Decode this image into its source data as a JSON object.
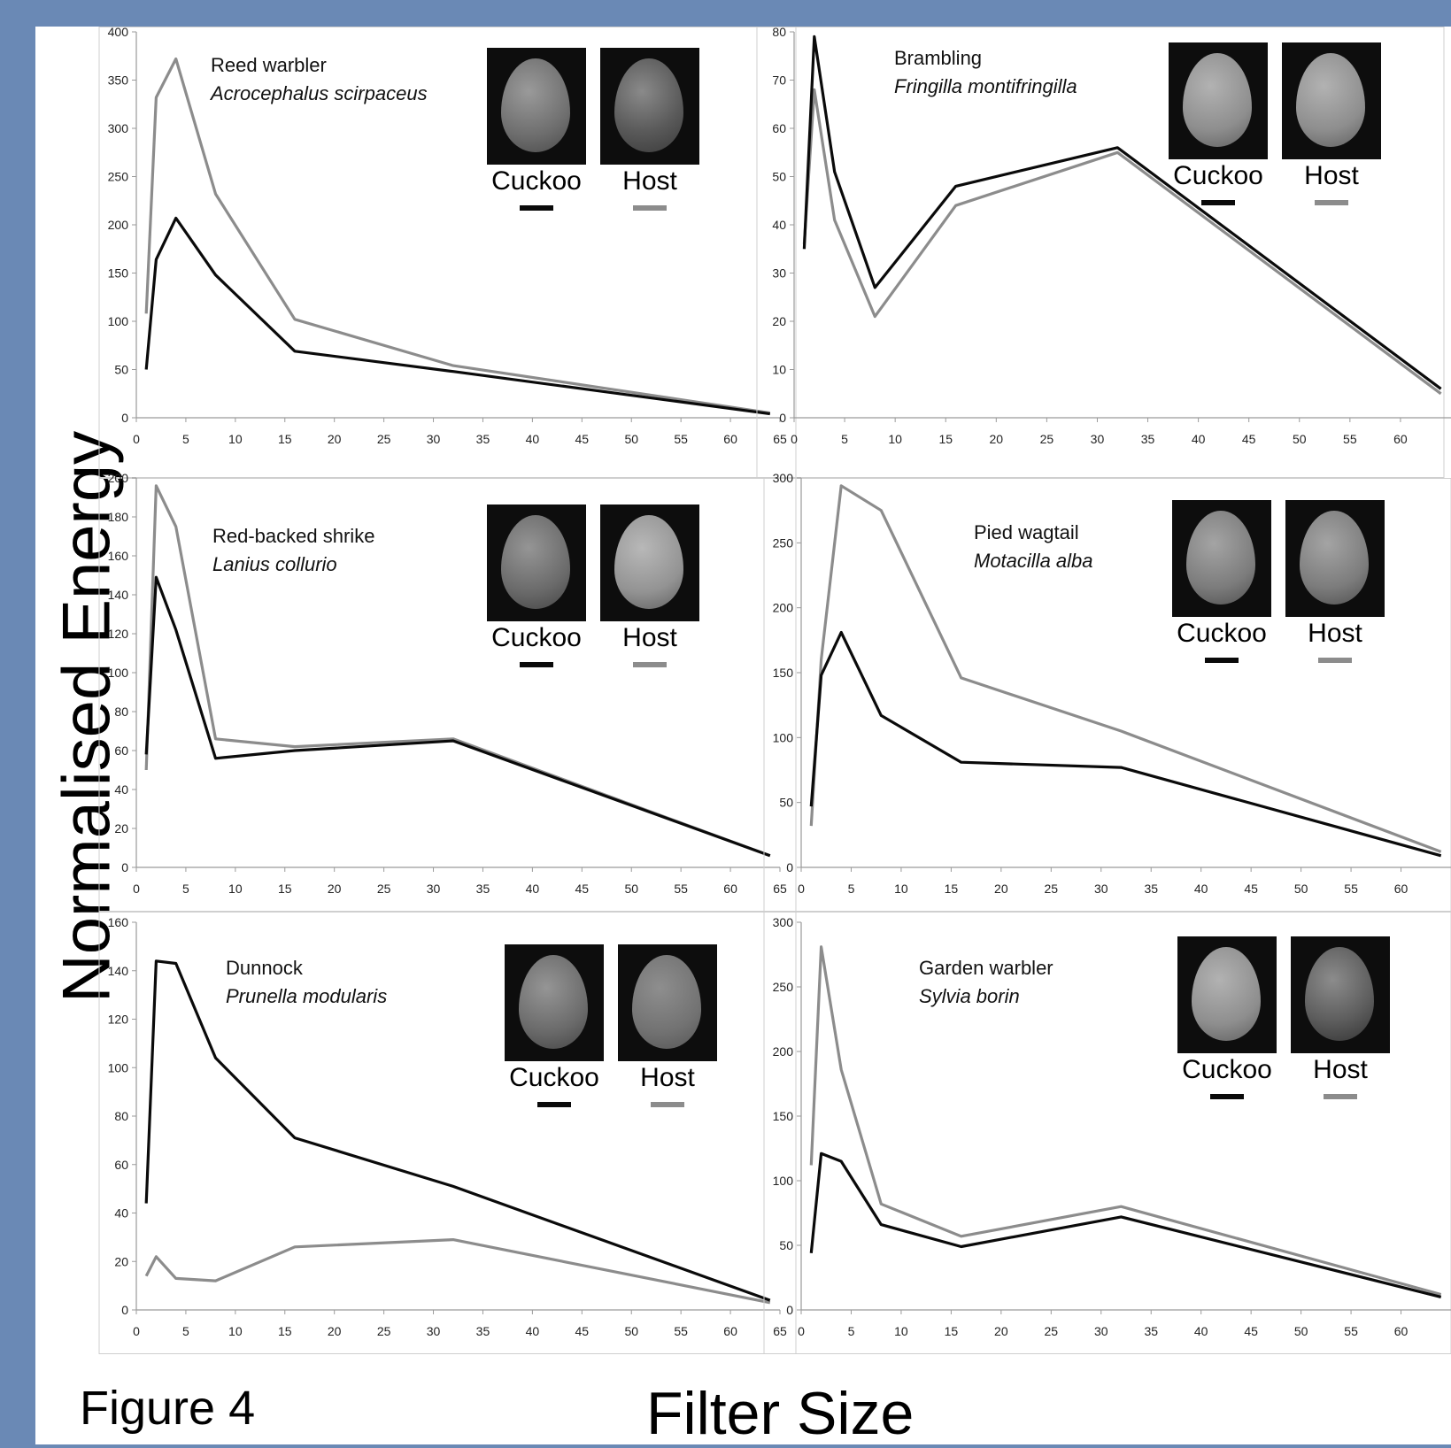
{
  "figure_label": "Figure 4",
  "ylabel": "Normalised Energy",
  "xlabel": "Filter Size",
  "colors": {
    "cuckoo": "#0a0a0a",
    "host": "#8c8c8c",
    "background_frame": "#6a89b5"
  },
  "legend": {
    "cuckoo_label": "Cuckoo",
    "host_label": "Host"
  },
  "chart_data": [
    {
      "type": "line",
      "common_name": "Reed warbler",
      "latin_name": "Acrocephalus scirpaceus",
      "x": [
        1,
        2,
        4,
        8,
        16,
        32,
        64
      ],
      "xticks": [
        0,
        5,
        10,
        15,
        20,
        25,
        30,
        35,
        40,
        45,
        50,
        55,
        60,
        65
      ],
      "xlim": [
        0,
        65
      ],
      "ylim": [
        0,
        400
      ],
      "yticks": [
        0,
        50,
        100,
        150,
        200,
        250,
        300,
        350,
        400
      ],
      "series": [
        {
          "name": "Cuckoo",
          "values": [
            50,
            164,
            207,
            148,
            69,
            48,
            4
          ]
        },
        {
          "name": "Host",
          "values": [
            108,
            332,
            372,
            232,
            102,
            54,
            5
          ]
        }
      ],
      "eggs": {
        "cuckoo": "speckled-grey",
        "host": "heavily-blotched"
      }
    },
    {
      "type": "line",
      "common_name": "Brambling",
      "latin_name": "Fringilla montifringilla",
      "x": [
        1,
        2,
        4,
        8,
        16,
        32,
        64
      ],
      "xticks": [
        0,
        5,
        10,
        15,
        20,
        25,
        30,
        35,
        40,
        45,
        50,
        55,
        60
      ],
      "xlim": [
        0,
        65
      ],
      "ylim": [
        0,
        80
      ],
      "yticks": [
        0,
        10,
        20,
        30,
        40,
        50,
        60,
        70,
        80
      ],
      "series": [
        {
          "name": "Cuckoo",
          "values": [
            35,
            79,
            51,
            27,
            48,
            56,
            6
          ]
        },
        {
          "name": "Host",
          "values": [
            36,
            68,
            41,
            21,
            44,
            55,
            5
          ]
        }
      ],
      "eggs": {
        "cuckoo": "sparse-spots",
        "host": "sparse-spots"
      }
    },
    {
      "type": "line",
      "common_name": "Red-backed shrike",
      "latin_name": "Lanius collurio",
      "x": [
        1,
        2,
        4,
        8,
        16,
        32,
        64
      ],
      "xticks": [
        0,
        5,
        10,
        15,
        20,
        25,
        30,
        35,
        40,
        45,
        50,
        55,
        60,
        65
      ],
      "xlim": [
        0,
        65
      ],
      "ylim": [
        0,
        200
      ],
      "yticks": [
        0,
        20,
        40,
        60,
        80,
        100,
        120,
        140,
        160,
        180,
        200
      ],
      "series": [
        {
          "name": "Cuckoo",
          "values": [
            58,
            149,
            122,
            56,
            60,
            65,
            6
          ]
        },
        {
          "name": "Host",
          "values": [
            50,
            196,
            175,
            66,
            62,
            66,
            6
          ]
        }
      ],
      "eggs": {
        "cuckoo": "mottled",
        "host": "banded"
      }
    },
    {
      "type": "line",
      "common_name": "Pied wagtail",
      "latin_name": "Motacilla alba",
      "x": [
        1,
        2,
        4,
        8,
        16,
        32,
        64
      ],
      "xticks": [
        0,
        5,
        10,
        15,
        20,
        25,
        30,
        35,
        40,
        45,
        50,
        55,
        60
      ],
      "xlim": [
        0,
        65
      ],
      "ylim": [
        0,
        300
      ],
      "yticks": [
        0,
        50,
        100,
        150,
        200,
        250,
        300
      ],
      "series": [
        {
          "name": "Cuckoo",
          "values": [
            47,
            148,
            181,
            117,
            81,
            77,
            9
          ]
        },
        {
          "name": "Host",
          "values": [
            32,
            160,
            294,
            275,
            146,
            105,
            12
          ]
        }
      ],
      "eggs": {
        "cuckoo": "fine-speckled",
        "host": "fine-speckled"
      }
    },
    {
      "type": "line",
      "common_name": "Dunnock",
      "latin_name": "Prunella modularis",
      "x": [
        1,
        2,
        4,
        8,
        16,
        32,
        64
      ],
      "xticks": [
        0,
        5,
        10,
        15,
        20,
        25,
        30,
        35,
        40,
        45,
        50,
        55,
        60,
        65
      ],
      "xlim": [
        0,
        65
      ],
      "ylim": [
        0,
        160
      ],
      "yticks": [
        0,
        20,
        40,
        60,
        80,
        100,
        120,
        140,
        160
      ],
      "series": [
        {
          "name": "Cuckoo",
          "values": [
            44,
            144,
            143,
            104,
            71,
            51,
            4
          ]
        },
        {
          "name": "Host",
          "values": [
            14,
            22,
            13,
            12,
            26,
            29,
            3
          ]
        }
      ],
      "eggs": {
        "cuckoo": "mottled",
        "host": "plain"
      }
    },
    {
      "type": "line",
      "common_name": "Garden warbler",
      "latin_name": "Sylvia borin",
      "x": [
        1,
        2,
        4,
        8,
        16,
        32,
        64
      ],
      "xticks": [
        0,
        5,
        10,
        15,
        20,
        25,
        30,
        35,
        40,
        45,
        50,
        55,
        60
      ],
      "xlim": [
        0,
        65
      ],
      "ylim": [
        0,
        300
      ],
      "yticks": [
        0,
        50,
        100,
        150,
        200,
        250,
        300
      ],
      "series": [
        {
          "name": "Cuckoo",
          "values": [
            44,
            121,
            115,
            66,
            49,
            72,
            10
          ]
        },
        {
          "name": "Host",
          "values": [
            112,
            281,
            186,
            82,
            57,
            80,
            12
          ]
        }
      ],
      "eggs": {
        "cuckoo": "sparse-spots",
        "host": "blotched"
      }
    }
  ]
}
